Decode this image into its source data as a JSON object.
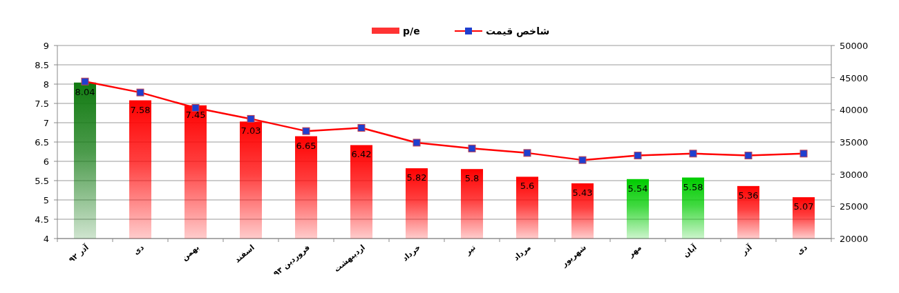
{
  "chart_data": {
    "type": "bar",
    "categories": [
      "آذر ۹۲",
      "دی",
      "بهمن",
      "اسفند",
      "فروردین ۹۳",
      "اردیبهشت",
      "خرداد",
      "تیر",
      "مرداد",
      "شهریور",
      "مهر",
      "آبان",
      "آذر",
      "دی"
    ],
    "series": [
      {
        "name": "p/e",
        "color": "#ff0000",
        "value_labels": [
          "8.04",
          "7.58",
          "7.45",
          "7.03",
          "6.65",
          "6.42",
          "5.82",
          "5.8",
          "5.6",
          "5.43",
          "5.54",
          "5.58",
          "5.36",
          "5.07"
        ],
        "colors": [
          "#117a11",
          "#ff0000",
          "#ff0000",
          "#ff0000",
          "#ff0000",
          "#ff0000",
          "#ff0000",
          "#ff0000",
          "#ff0000",
          "#ff0000",
          "#00cc00",
          "#00cc00",
          "#ff0000",
          "#ff0000"
        ],
        "values": [
          8.04,
          7.58,
          7.45,
          7.03,
          6.65,
          6.42,
          5.82,
          5.8,
          5.6,
          5.43,
          5.54,
          5.58,
          5.36,
          5.07
        ]
      },
      {
        "name": "شاخص قیمت",
        "type": "line",
        "axis": "y2",
        "color": "#ff0000",
        "marker": "square",
        "values": [
          44400,
          42700,
          40300,
          38600,
          36700,
          37200,
          34900,
          34000,
          33300,
          32200,
          32900,
          33200,
          32900,
          33200
        ]
      }
    ],
    "ylim": [
      4,
      9
    ],
    "yticks": [
      4,
      4.5,
      5,
      5.5,
      6,
      6.5,
      7,
      7.5,
      8,
      8.5,
      9
    ],
    "y2lim": [
      20000,
      50000
    ],
    "y2ticks": [
      20000,
      25000,
      30000,
      35000,
      40000,
      45000,
      50000
    ],
    "grid": "y",
    "legend": "top"
  }
}
